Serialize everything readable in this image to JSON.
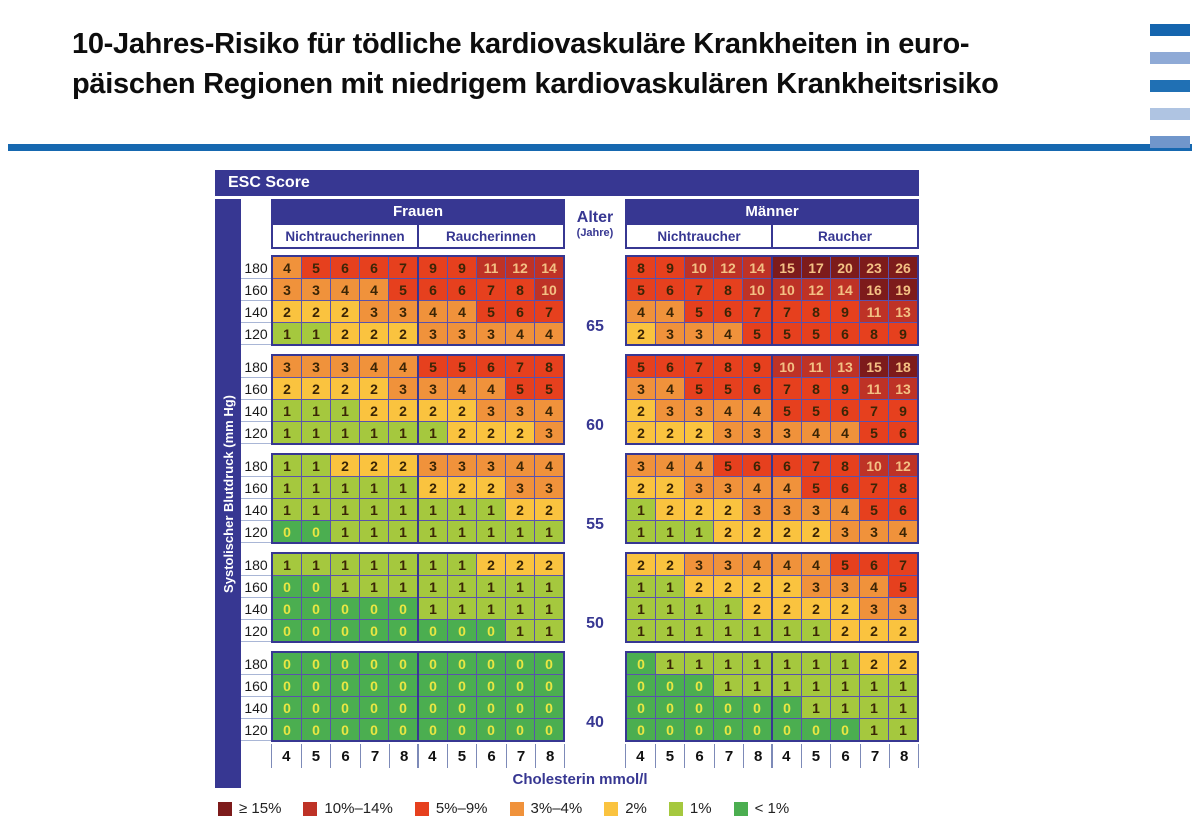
{
  "title": {
    "line1": "10-Jahres-Risiko für tödliche kardiovaskuläre Krankheiten in euro-",
    "line2": "päischen Regionen mit niedrigem kardiovaskulären Krankheitsrisiko"
  },
  "decor_bars": [
    "#1565AE",
    "#8FAAD6",
    "#2070B4",
    "#AFC4E2",
    "#7096CB"
  ],
  "table": {
    "header": "ESC Score",
    "y_axis_label": "Systolischer Blutdruck (mm Hg)",
    "x_axis_label": "Cholesterin mmol/l",
    "groups": {
      "frauen": "Frauen",
      "maenner": "Männer"
    },
    "subgroups": {
      "f_ns": "Nichtraucherinnen",
      "f_s": "Raucherinnen",
      "m_ns": "Nichtraucher",
      "m_s": "Raucher"
    },
    "alter": {
      "label": "Alter",
      "unit": "(Jahre)"
    }
  },
  "chart_data": {
    "type": "heatmap",
    "title": "ESC Score",
    "description": "10-year risk (%) of fatal cardiovascular disease, low-risk European regions",
    "bp_rows": [
      180,
      160,
      140,
      120
    ],
    "cholesterol": [
      4,
      5,
      6,
      7,
      8
    ],
    "ages": [
      65,
      60,
      55,
      50,
      40
    ],
    "sections": {
      "f_ns": "Frauen Nichtraucherinnen",
      "f_s": "Frauen Raucherinnen",
      "m_ns": "Männer Nichtraucher",
      "m_s": "Männer Raucher"
    },
    "blocks": [
      {
        "age": 65,
        "f_ns": [
          [
            4,
            5,
            6,
            6,
            7
          ],
          [
            3,
            3,
            4,
            4,
            5
          ],
          [
            2,
            2,
            2,
            3,
            3
          ],
          [
            1,
            1,
            2,
            2,
            2
          ]
        ],
        "f_s": [
          [
            9,
            9,
            11,
            12,
            14
          ],
          [
            6,
            6,
            7,
            8,
            10
          ],
          [
            4,
            4,
            5,
            6,
            7
          ],
          [
            3,
            3,
            3,
            4,
            4
          ]
        ],
        "m_ns": [
          [
            8,
            9,
            10,
            12,
            14
          ],
          [
            5,
            6,
            7,
            8,
            10
          ],
          [
            4,
            4,
            5,
            6,
            7
          ],
          [
            2,
            3,
            3,
            4,
            5
          ]
        ],
        "m_s": [
          [
            15,
            17,
            20,
            23,
            26
          ],
          [
            10,
            12,
            14,
            16,
            19
          ],
          [
            7,
            8,
            9,
            11,
            13
          ],
          [
            5,
            5,
            6,
            8,
            9
          ]
        ]
      },
      {
        "age": 60,
        "f_ns": [
          [
            3,
            3,
            3,
            4,
            4
          ],
          [
            2,
            2,
            2,
            2,
            3
          ],
          [
            1,
            1,
            1,
            2,
            2
          ],
          [
            1,
            1,
            1,
            1,
            1
          ]
        ],
        "f_s": [
          [
            5,
            5,
            6,
            7,
            8
          ],
          [
            3,
            4,
            4,
            5,
            5
          ],
          [
            2,
            2,
            3,
            3,
            4
          ],
          [
            1,
            2,
            2,
            2,
            3
          ]
        ],
        "m_ns": [
          [
            5,
            6,
            7,
            8,
            9
          ],
          [
            3,
            4,
            5,
            5,
            6
          ],
          [
            2,
            3,
            3,
            4,
            4
          ],
          [
            2,
            2,
            2,
            3,
            3
          ]
        ],
        "m_s": [
          [
            10,
            11,
            13,
            15,
            18
          ],
          [
            7,
            8,
            9,
            11,
            13
          ],
          [
            5,
            5,
            6,
            7,
            9
          ],
          [
            3,
            4,
            4,
            5,
            6
          ]
        ]
      },
      {
        "age": 55,
        "f_ns": [
          [
            1,
            1,
            2,
            2,
            2
          ],
          [
            1,
            1,
            1,
            1,
            1
          ],
          [
            1,
            1,
            1,
            1,
            1
          ],
          [
            0,
            0,
            1,
            1,
            1
          ]
        ],
        "f_s": [
          [
            3,
            3,
            3,
            4,
            4
          ],
          [
            2,
            2,
            2,
            3,
            3
          ],
          [
            1,
            1,
            1,
            2,
            2
          ],
          [
            1,
            1,
            1,
            1,
            1
          ]
        ],
        "m_ns": [
          [
            3,
            4,
            4,
            5,
            6
          ],
          [
            2,
            2,
            3,
            3,
            4
          ],
          [
            1,
            2,
            2,
            2,
            3
          ],
          [
            1,
            1,
            1,
            2,
            2
          ]
        ],
        "m_s": [
          [
            6,
            7,
            8,
            10,
            12
          ],
          [
            4,
            5,
            6,
            7,
            8
          ],
          [
            3,
            3,
            4,
            5,
            6
          ],
          [
            2,
            2,
            3,
            3,
            4
          ]
        ]
      },
      {
        "age": 50,
        "f_ns": [
          [
            1,
            1,
            1,
            1,
            1
          ],
          [
            0,
            0,
            1,
            1,
            1
          ],
          [
            0,
            0,
            0,
            0,
            0
          ],
          [
            0,
            0,
            0,
            0,
            0
          ]
        ],
        "f_s": [
          [
            1,
            1,
            2,
            2,
            2
          ],
          [
            1,
            1,
            1,
            1,
            1
          ],
          [
            1,
            1,
            1,
            1,
            1
          ],
          [
            0,
            0,
            0,
            1,
            1
          ]
        ],
        "m_ns": [
          [
            2,
            2,
            3,
            3,
            4
          ],
          [
            1,
            1,
            2,
            2,
            2
          ],
          [
            1,
            1,
            1,
            1,
            2
          ],
          [
            1,
            1,
            1,
            1,
            1
          ]
        ],
        "m_s": [
          [
            4,
            4,
            5,
            6,
            7
          ],
          [
            2,
            3,
            3,
            4,
            5
          ],
          [
            2,
            2,
            2,
            3,
            3
          ],
          [
            1,
            1,
            2,
            2,
            2
          ]
        ]
      },
      {
        "age": 40,
        "f_ns": [
          [
            0,
            0,
            0,
            0,
            0
          ],
          [
            0,
            0,
            0,
            0,
            0
          ],
          [
            0,
            0,
            0,
            0,
            0
          ],
          [
            0,
            0,
            0,
            0,
            0
          ]
        ],
        "f_s": [
          [
            0,
            0,
            0,
            0,
            0
          ],
          [
            0,
            0,
            0,
            0,
            0
          ],
          [
            0,
            0,
            0,
            0,
            0
          ],
          [
            0,
            0,
            0,
            0,
            0
          ]
        ],
        "m_ns": [
          [
            0,
            1,
            1,
            1,
            1
          ],
          [
            0,
            0,
            0,
            1,
            1
          ],
          [
            0,
            0,
            0,
            0,
            0
          ],
          [
            0,
            0,
            0,
            0,
            0
          ]
        ],
        "m_s": [
          [
            1,
            1,
            1,
            2,
            2
          ],
          [
            1,
            1,
            1,
            1,
            1
          ],
          [
            0,
            1,
            1,
            1,
            1
          ],
          [
            0,
            0,
            0,
            1,
            1
          ]
        ]
      }
    ],
    "risk_levels": [
      {
        "label": "≥ 15%",
        "min": 15,
        "color": "#7D1B1B"
      },
      {
        "label": "10%–14%",
        "min": 10,
        "color": "#BE3226"
      },
      {
        "label": "5%–9%",
        "min": 5,
        "color": "#E6401E"
      },
      {
        "label": "3%–4%",
        "min": 3,
        "color": "#F0923B"
      },
      {
        "label": "2%",
        "min": 2,
        "color": "#FAC33F"
      },
      {
        "label": "1%",
        "min": 1,
        "color": "#A5C83E"
      },
      {
        "label": "< 1%",
        "min": 0,
        "color": "#4BAE50"
      }
    ],
    "text_colors": {
      "zero": "#E9E642",
      "dark": "#3A2505",
      "light": "#F3C083"
    }
  }
}
